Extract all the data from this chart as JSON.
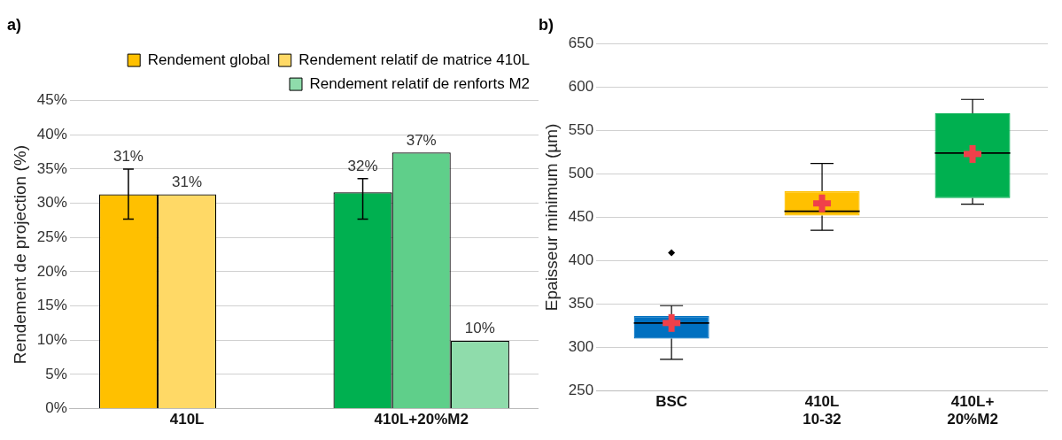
{
  "chart_data": [
    {
      "type": "bar",
      "title": "a)",
      "ylabel": "Rendement de projection (%)",
      "categories": [
        "410L",
        "410L+20%M2"
      ],
      "series": [
        {
          "name": "Rendement global",
          "colors": [
            "#ffc000",
            "#00b050"
          ],
          "values": [
            31.3,
            31.6
          ],
          "errors": [
            [
              27.7,
              35.0
            ],
            [
              27.7,
              33.6
            ]
          ],
          "value_labels": [
            "31%",
            "32%"
          ]
        },
        {
          "name": "Rendement relatif de matrice 410L",
          "colors": [
            "#ffd966",
            "#5fcf8a"
          ],
          "values": [
            31.3,
            37.4
          ],
          "value_labels": [
            "31%",
            "37%"
          ]
        },
        {
          "name": "Rendement relatif de renforts M2",
          "colors": [
            "#a9e3be",
            "#8fdcab"
          ],
          "values": [
            null,
            9.9
          ],
          "value_labels": [
            null,
            "10%"
          ]
        }
      ],
      "ylim": [
        0,
        45
      ],
      "yticks": [
        {
          "value": 0,
          "label": "0%"
        },
        {
          "value": 5,
          "label": "5%"
        },
        {
          "value": 10,
          "label": "10%"
        },
        {
          "value": 15,
          "label": "15%"
        },
        {
          "value": 20,
          "label": "20%"
        },
        {
          "value": 25,
          "label": "25%"
        },
        {
          "value": 30,
          "label": "30%"
        },
        {
          "value": 35,
          "label": "35%"
        },
        {
          "value": 40,
          "label": "40%"
        },
        {
          "value": 45,
          "label": "45%"
        }
      ],
      "grid": "y",
      "legend": "top right"
    },
    {
      "type": "box",
      "title": "b)",
      "ylabel": "Epaisseur minimum (µm)",
      "categories": [
        "BSC",
        "410L\n10-32",
        "410L+\n20%M2"
      ],
      "colors": [
        "#0070c0",
        "#ffc000",
        "#00b050"
      ],
      "boxes": [
        {
          "low": 286,
          "q1": 310,
          "median": 328,
          "q3": 336,
          "high": 348,
          "mean": 328,
          "outliers": [
            409
          ]
        },
        {
          "low": 435,
          "q1": 452,
          "median": 457,
          "q3": 480,
          "high": 512,
          "mean": 466
        },
        {
          "low": 465,
          "q1": 472,
          "median": 524,
          "q3": 570,
          "high": 586,
          "mean": 523
        }
      ],
      "ylim": [
        250,
        650
      ],
      "yticks": [
        250,
        300,
        350,
        400,
        450,
        500,
        550,
        600,
        650
      ],
      "grid": "y"
    }
  ]
}
